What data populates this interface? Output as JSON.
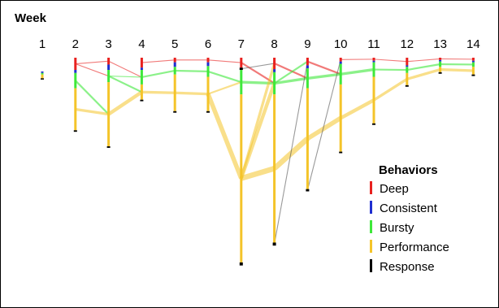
{
  "chart_data": {
    "type": "parallel-flow",
    "title": "Week",
    "weeks": [
      "1",
      "2",
      "3",
      "4",
      "5",
      "6",
      "7",
      "8",
      "9",
      "10",
      "11",
      "12",
      "13",
      "14"
    ],
    "legend": {
      "title": "Behaviors",
      "placement": "right",
      "items": [
        {
          "name": "Deep",
          "color": "#e8211f"
        },
        {
          "name": "Consistent",
          "color": "#1f2ed0"
        },
        {
          "name": "Bursty",
          "color": "#3ee83a"
        },
        {
          "name": "Performance",
          "color": "#f4c42a"
        },
        {
          "name": "Response",
          "color": "#000000"
        }
      ]
    },
    "y_range_note": "relative vertical position, 0 = top band",
    "nodes": [
      {
        "week": 1,
        "segments": [
          {
            "b": "Consistent",
            "y0": 0.18,
            "y1": 0.2
          },
          {
            "b": "Bursty",
            "y0": 0.2,
            "y1": 0.22
          },
          {
            "b": "Performance",
            "y0": 0.22,
            "y1": 0.27
          },
          {
            "b": "Response",
            "y0": 0.27,
            "y1": 0.28
          }
        ]
      },
      {
        "week": 2,
        "segments": [
          {
            "b": "Deep",
            "y0": 0.0,
            "y1": 0.16
          },
          {
            "b": "Consistent",
            "y0": 0.16,
            "y1": 0.2
          },
          {
            "b": "Bursty",
            "y0": 0.2,
            "y1": 0.4
          },
          {
            "b": "Performance",
            "y0": 0.4,
            "y1": 0.95
          },
          {
            "b": "Response",
            "y0": 0.95,
            "y1": 0.97
          }
        ]
      },
      {
        "week": 3,
        "segments": [
          {
            "b": "Deep",
            "y0": 0.0,
            "y1": 0.09
          },
          {
            "b": "Consistent",
            "y0": 0.09,
            "y1": 0.16
          },
          {
            "b": "Bursty",
            "y0": 0.16,
            "y1": 0.32
          },
          {
            "b": "Performance",
            "y0": 0.32,
            "y1": 1.16
          },
          {
            "b": "Response",
            "y0": 1.16,
            "y1": 1.18
          }
        ]
      },
      {
        "week": 4,
        "segments": [
          {
            "b": "Deep",
            "y0": 0.0,
            "y1": 0.13
          },
          {
            "b": "Consistent",
            "y0": 0.13,
            "y1": 0.16
          },
          {
            "b": "Bursty",
            "y0": 0.16,
            "y1": 0.35
          },
          {
            "b": "Performance",
            "y0": 0.35,
            "y1": 0.55
          },
          {
            "b": "Response",
            "y0": 0.55,
            "y1": 0.57
          }
        ]
      },
      {
        "week": 5,
        "segments": [
          {
            "b": "Deep",
            "y0": 0.0,
            "y1": 0.06
          },
          {
            "b": "Consistent",
            "y0": 0.06,
            "y1": 0.12
          },
          {
            "b": "Bursty",
            "y0": 0.12,
            "y1": 0.22
          },
          {
            "b": "Performance",
            "y0": 0.22,
            "y1": 0.7
          },
          {
            "b": "Response",
            "y0": 0.7,
            "y1": 0.72
          }
        ]
      },
      {
        "week": 6,
        "segments": [
          {
            "b": "Deep",
            "y0": 0.0,
            "y1": 0.06
          },
          {
            "b": "Consistent",
            "y0": 0.06,
            "y1": 0.11
          },
          {
            "b": "Bursty",
            "y0": 0.11,
            "y1": 0.25
          },
          {
            "b": "Performance",
            "y0": 0.25,
            "y1": 0.7
          },
          {
            "b": "Response",
            "y0": 0.7,
            "y1": 0.72
          }
        ]
      },
      {
        "week": 7,
        "segments": [
          {
            "b": "Deep",
            "y0": 0.0,
            "y1": 0.13
          },
          {
            "b": "Response",
            "y0": 0.13,
            "y1": 0.16
          },
          {
            "b": "Bursty",
            "y0": 0.16,
            "y1": 0.48
          },
          {
            "b": "Performance",
            "y0": 0.48,
            "y1": 2.68
          },
          {
            "b": "Response",
            "y0": 2.68,
            "y1": 2.72
          }
        ]
      },
      {
        "week": 8,
        "segments": [
          {
            "b": "Deep",
            "y0": 0.0,
            "y1": 0.15
          },
          {
            "b": "Consistent",
            "y0": 0.15,
            "y1": 0.19
          },
          {
            "b": "Bursty",
            "y0": 0.19,
            "y1": 0.48
          },
          {
            "b": "Performance",
            "y0": 0.48,
            "y1": 2.42
          },
          {
            "b": "Response",
            "y0": 2.42,
            "y1": 2.46
          }
        ]
      },
      {
        "week": 9,
        "segments": [
          {
            "b": "Deep",
            "y0": 0.0,
            "y1": 0.1
          },
          {
            "b": "Consistent",
            "y0": 0.1,
            "y1": 0.14
          },
          {
            "b": "Bursty",
            "y0": 0.14,
            "y1": 0.4
          },
          {
            "b": "Performance",
            "y0": 0.4,
            "y1": 1.72
          },
          {
            "b": "Response",
            "y0": 1.72,
            "y1": 1.75
          }
        ]
      },
      {
        "week": 10,
        "segments": [
          {
            "b": "Deep",
            "y0": 0.0,
            "y1": 0.05
          },
          {
            "b": "Consistent",
            "y0": 0.05,
            "y1": 0.08
          },
          {
            "b": "Bursty",
            "y0": 0.08,
            "y1": 0.35
          },
          {
            "b": "Performance",
            "y0": 0.35,
            "y1": 1.23
          },
          {
            "b": "Response",
            "y0": 1.23,
            "y1": 1.25
          }
        ]
      },
      {
        "week": 11,
        "segments": [
          {
            "b": "Deep",
            "y0": 0.0,
            "y1": 0.04
          },
          {
            "b": "Consistent",
            "y0": 0.04,
            "y1": 0.06
          },
          {
            "b": "Bursty",
            "y0": 0.06,
            "y1": 0.25
          },
          {
            "b": "Performance",
            "y0": 0.25,
            "y1": 0.86
          },
          {
            "b": "Response",
            "y0": 0.86,
            "y1": 0.88
          }
        ]
      },
      {
        "week": 12,
        "segments": [
          {
            "b": "Deep",
            "y0": 0.0,
            "y1": 0.1
          },
          {
            "b": "Consistent",
            "y0": 0.1,
            "y1": 0.12
          },
          {
            "b": "Bursty",
            "y0": 0.12,
            "y1": 0.2
          },
          {
            "b": "Performance",
            "y0": 0.2,
            "y1": 0.36
          },
          {
            "b": "Response",
            "y0": 0.36,
            "y1": 0.38
          }
        ]
      },
      {
        "week": 13,
        "segments": [
          {
            "b": "Deep",
            "y0": 0.0,
            "y1": 0.03
          },
          {
            "b": "Consistent",
            "y0": 0.03,
            "y1": 0.05
          },
          {
            "b": "Bursty",
            "y0": 0.05,
            "y1": 0.12
          },
          {
            "b": "Performance",
            "y0": 0.12,
            "y1": 0.19
          },
          {
            "b": "Response",
            "y0": 0.19,
            "y1": 0.21
          }
        ]
      },
      {
        "week": 14,
        "segments": [
          {
            "b": "Deep",
            "y0": 0.0,
            "y1": 0.04
          },
          {
            "b": "Consistent",
            "y0": 0.04,
            "y1": 0.06
          },
          {
            "b": "Bursty",
            "y0": 0.06,
            "y1": 0.12
          },
          {
            "b": "Performance",
            "y0": 0.12,
            "y1": 0.22
          },
          {
            "b": "Response",
            "y0": 0.22,
            "y1": 0.24
          }
        ]
      }
    ],
    "flows": [
      {
        "from": [
          2,
          "Deep"
        ],
        "to": [
          3,
          "Bursty"
        ],
        "w": 1
      },
      {
        "from": [
          2,
          "Bursty"
        ],
        "to": [
          3,
          "Performance"
        ],
        "w": 2
      },
      {
        "from": [
          2,
          "Performance"
        ],
        "to": [
          3,
          "Performance"
        ],
        "w": 3
      },
      {
        "from": [
          2,
          "Deep"
        ],
        "to": [
          3,
          "Deep"
        ],
        "w": 1
      },
      {
        "from": [
          3,
          "Deep"
        ],
        "to": [
          4,
          "Bursty"
        ],
        "w": 1
      },
      {
        "from": [
          3,
          "Bursty"
        ],
        "to": [
          4,
          "Bursty"
        ],
        "w": 1
      },
      {
        "from": [
          3,
          "Performance"
        ],
        "to": [
          4,
          "Performance"
        ],
        "w": 4
      },
      {
        "from": [
          3,
          "Bursty"
        ],
        "to": [
          4,
          "Performance"
        ],
        "w": 2
      },
      {
        "from": [
          4,
          "Deep"
        ],
        "to": [
          5,
          "Deep"
        ],
        "w": 1
      },
      {
        "from": [
          4,
          "Bursty"
        ],
        "to": [
          5,
          "Bursty"
        ],
        "w": 2
      },
      {
        "from": [
          4,
          "Performance"
        ],
        "to": [
          5,
          "Performance"
        ],
        "w": 3
      },
      {
        "from": [
          5,
          "Deep"
        ],
        "to": [
          6,
          "Deep"
        ],
        "w": 1
      },
      {
        "from": [
          5,
          "Bursty"
        ],
        "to": [
          6,
          "Bursty"
        ],
        "w": 2
      },
      {
        "from": [
          5,
          "Performance"
        ],
        "to": [
          6,
          "Performance"
        ],
        "w": 3
      },
      {
        "from": [
          6,
          "Deep"
        ],
        "to": [
          7,
          "Deep"
        ],
        "w": 1
      },
      {
        "from": [
          6,
          "Bursty"
        ],
        "to": [
          7,
          "Bursty"
        ],
        "w": 2
      },
      {
        "from": [
          6,
          "Performance"
        ],
        "to": [
          7,
          "Performance"
        ],
        "w": 5
      },
      {
        "from": [
          6,
          "Performance"
        ],
        "to": [
          7,
          "Bursty"
        ],
        "w": 2
      },
      {
        "from": [
          7,
          "Deep"
        ],
        "to": [
          8,
          "Bursty"
        ],
        "w": 2
      },
      {
        "from": [
          7,
          "Bursty"
        ],
        "to": [
          8,
          "Bursty"
        ],
        "w": 3
      },
      {
        "from": [
          7,
          "Performance"
        ],
        "to": [
          8,
          "Performance"
        ],
        "w": 6
      },
      {
        "from": [
          7,
          "Performance"
        ],
        "to": [
          8,
          "Deep"
        ],
        "w": 3
      },
      {
        "from": [
          7,
          "Performance"
        ],
        "to": [
          8,
          "Bursty"
        ],
        "w": 4
      },
      {
        "from": [
          7,
          "Response"
        ],
        "to": [
          8,
          "Deep"
        ],
        "w": 1
      },
      {
        "from": [
          8,
          "Deep"
        ],
        "to": [
          9,
          "Bursty"
        ],
        "w": 2
      },
      {
        "from": [
          8,
          "Bursty"
        ],
        "to": [
          9,
          "Bursty"
        ],
        "w": 3
      },
      {
        "from": [
          8,
          "Performance"
        ],
        "to": [
          9,
          "Performance"
        ],
        "w": 6
      },
      {
        "from": [
          8,
          "Bursty"
        ],
        "to": [
          9,
          "Deep"
        ],
        "w": 2
      },
      {
        "from": [
          8,
          "Response"
        ],
        "to": [
          9,
          "Deep"
        ],
        "w": 1
      },
      {
        "from": [
          9,
          "Deep"
        ],
        "to": [
          10,
          "Bursty"
        ],
        "w": 2
      },
      {
        "from": [
          9,
          "Bursty"
        ],
        "to": [
          10,
          "Bursty"
        ],
        "w": 3
      },
      {
        "from": [
          9,
          "Performance"
        ],
        "to": [
          10,
          "Performance"
        ],
        "w": 5
      },
      {
        "from": [
          9,
          "Response"
        ],
        "to": [
          10,
          "Deep"
        ],
        "w": 1
      },
      {
        "from": [
          10,
          "Deep"
        ],
        "to": [
          11,
          "Deep"
        ],
        "w": 1
      },
      {
        "from": [
          10,
          "Bursty"
        ],
        "to": [
          11,
          "Bursty"
        ],
        "w": 3
      },
      {
        "from": [
          10,
          "Performance"
        ],
        "to": [
          11,
          "Performance"
        ],
        "w": 4
      },
      {
        "from": [
          11,
          "Deep"
        ],
        "to": [
          12,
          "Deep"
        ],
        "w": 1
      },
      {
        "from": [
          11,
          "Bursty"
        ],
        "to": [
          12,
          "Bursty"
        ],
        "w": 2
      },
      {
        "from": [
          11,
          "Performance"
        ],
        "to": [
          12,
          "Performance"
        ],
        "w": 3
      },
      {
        "from": [
          12,
          "Deep"
        ],
        "to": [
          13,
          "Deep"
        ],
        "w": 1
      },
      {
        "from": [
          12,
          "Bursty"
        ],
        "to": [
          13,
          "Bursty"
        ],
        "w": 2
      },
      {
        "from": [
          12,
          "Performance"
        ],
        "to": [
          13,
          "Performance"
        ],
        "w": 3
      },
      {
        "from": [
          13,
          "Deep"
        ],
        "to": [
          14,
          "Deep"
        ],
        "w": 1
      },
      {
        "from": [
          13,
          "Bursty"
        ],
        "to": [
          14,
          "Bursty"
        ],
        "w": 2
      },
      {
        "from": [
          13,
          "Performance"
        ],
        "to": [
          14,
          "Performance"
        ],
        "w": 3
      }
    ]
  }
}
